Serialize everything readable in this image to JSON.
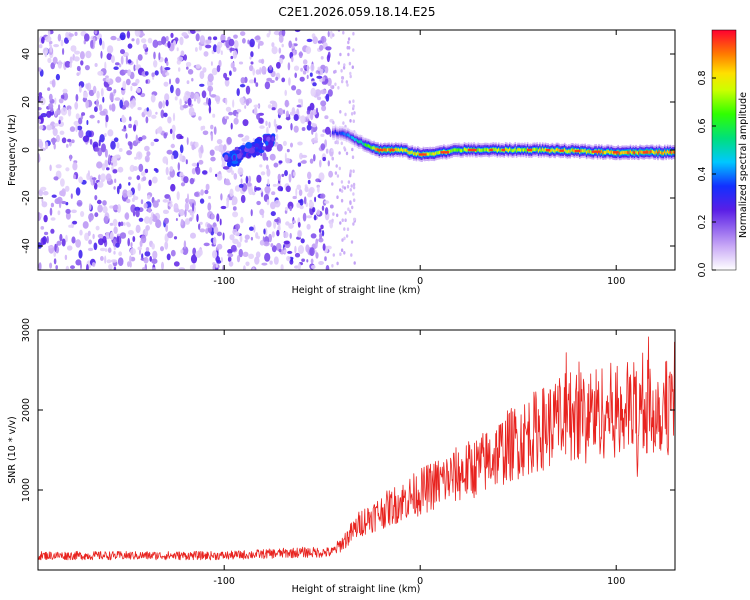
{
  "title": "C2E1.2026.059.18.14.E25",
  "colors": {
    "snr_line": "#e8231f",
    "axis": "#000000",
    "spectrogram_palette": [
      "#ffffff",
      "#e9d8fb",
      "#c09cf3",
      "#7a2ee8",
      "#5a1fe6",
      "#1230ff",
      "#00c8ff",
      "#20e070",
      "#aaff00",
      "#ffe000",
      "#ff8800",
      "#ee1c1c"
    ]
  },
  "chart_data": [
    {
      "type": "heatmap",
      "id": "spectrogram",
      "xlabel": "Height of straight line (km)",
      "ylabel": "Frequency (Hz)",
      "xlim": [
        -195,
        130
      ],
      "ylim": [
        -50,
        50
      ],
      "xticks": [
        -100,
        0,
        100
      ],
      "yticks": [
        -40,
        -20,
        0,
        20,
        40
      ],
      "colorbar": {
        "label": "Normalized spectral amplitude",
        "range": [
          0,
          1
        ],
        "ticks": [
          "0.0",
          "0.2",
          "0.4",
          "0.6",
          "0.8"
        ]
      },
      "ridge": {
        "description": "narrow band centered near 0 Hz for heights above about -45 km",
        "points": [
          {
            "x": -45,
            "freq": 7.5,
            "amplitude": 0.3
          },
          {
            "x": -38,
            "freq": 6.5,
            "amplitude": 0.4
          },
          {
            "x": -30,
            "freq": 3,
            "amplitude": 0.55
          },
          {
            "x": -22,
            "freq": 0,
            "amplitude": 0.9
          },
          {
            "x": -10,
            "freq": 0,
            "amplitude": 0.85
          },
          {
            "x": 0,
            "freq": -2,
            "amplitude": 0.8
          },
          {
            "x": 20,
            "freq": 0,
            "amplitude": 0.75
          },
          {
            "x": 60,
            "freq": 0,
            "amplitude": 0.8
          },
          {
            "x": 100,
            "freq": -1,
            "amplitude": 0.9
          },
          {
            "x": 130,
            "freq": -1,
            "amplitude": 0.95
          }
        ],
        "noise_region": {
          "x_from": -195,
          "x_to": -45,
          "amplitude_range": [
            0.05,
            0.3
          ]
        },
        "blob": {
          "x_from": -100,
          "x_to": -75,
          "freq_from": -5,
          "freq_to": 8,
          "amplitude_range": [
            0.2,
            0.4
          ]
        }
      }
    },
    {
      "type": "line",
      "id": "snr",
      "xlabel": "Height of straight line (km)",
      "ylabel": "SNR (10 * v/v)",
      "xlim": [
        -195,
        130
      ],
      "ylim": [
        0,
        3000
      ],
      "xticks": [
        -100,
        0,
        100
      ],
      "yticks": [
        1000,
        2000,
        3000
      ],
      "series": [
        {
          "name": "SNR",
          "trend": [
            {
              "x": -195,
              "y": 180
            },
            {
              "x": -100,
              "y": 180
            },
            {
              "x": -60,
              "y": 220
            },
            {
              "x": -45,
              "y": 220
            },
            {
              "x": -40,
              "y": 330
            },
            {
              "x": -30,
              "y": 600
            },
            {
              "x": -10,
              "y": 850
            },
            {
              "x": 10,
              "y": 1100
            },
            {
              "x": 30,
              "y": 1300
            },
            {
              "x": 45,
              "y": 1550
            },
            {
              "x": 60,
              "y": 1750
            },
            {
              "x": 80,
              "y": 1950
            },
            {
              "x": 100,
              "y": 2000
            },
            {
              "x": 130,
              "y": 2050
            }
          ],
          "noise_fraction": 0.3,
          "peak_max": 3000
        }
      ]
    }
  ]
}
